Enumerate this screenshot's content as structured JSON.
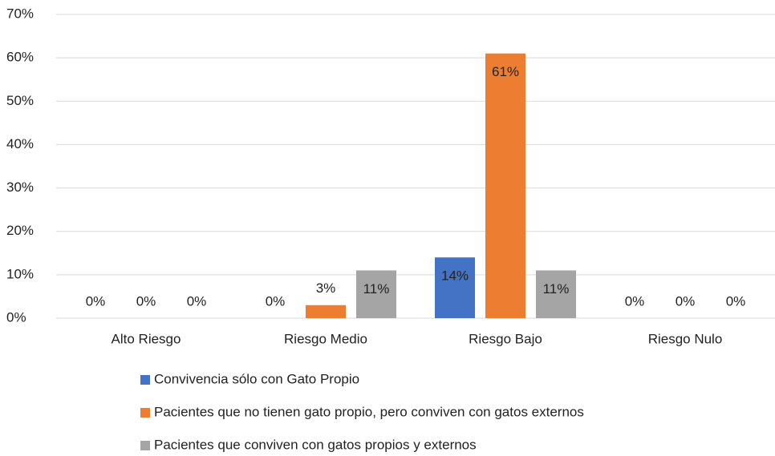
{
  "chart_data": {
    "type": "bar",
    "categories": [
      "Alto Riesgo",
      "Riesgo Medio",
      "Riesgo Bajo",
      "Riesgo Nulo"
    ],
    "series": [
      {
        "name": "Convivencia sólo con Gato Propio",
        "color": "#4472c4",
        "values": [
          0,
          0,
          14,
          0
        ],
        "value_labels": [
          "0%",
          "0%",
          "14%",
          "0%"
        ]
      },
      {
        "name": "Pacientes que no tienen gato propio, pero conviven con gatos externos",
        "color": "#ed7d31",
        "values": [
          0,
          3,
          61,
          0
        ],
        "value_labels": [
          "0%",
          "3%",
          "61%",
          "0%"
        ]
      },
      {
        "name": "Pacientes que conviven con gatos propios y externos",
        "color": "#a5a5a5",
        "values": [
          0,
          11,
          11,
          0
        ],
        "value_labels": [
          "0%",
          "11%",
          "11%",
          "0%"
        ]
      }
    ],
    "ylim": [
      0,
      70
    ],
    "yticks": [
      {
        "value": 0,
        "label": "0%"
      },
      {
        "value": 10,
        "label": "10%"
      },
      {
        "value": 20,
        "label": "20%"
      },
      {
        "value": 30,
        "label": "30%"
      },
      {
        "value": 40,
        "label": "40%"
      },
      {
        "value": 50,
        "label": "50%"
      },
      {
        "value": 60,
        "label": "60%"
      },
      {
        "value": 70,
        "label": "70%"
      }
    ],
    "grid": true,
    "legend": "bottom"
  }
}
